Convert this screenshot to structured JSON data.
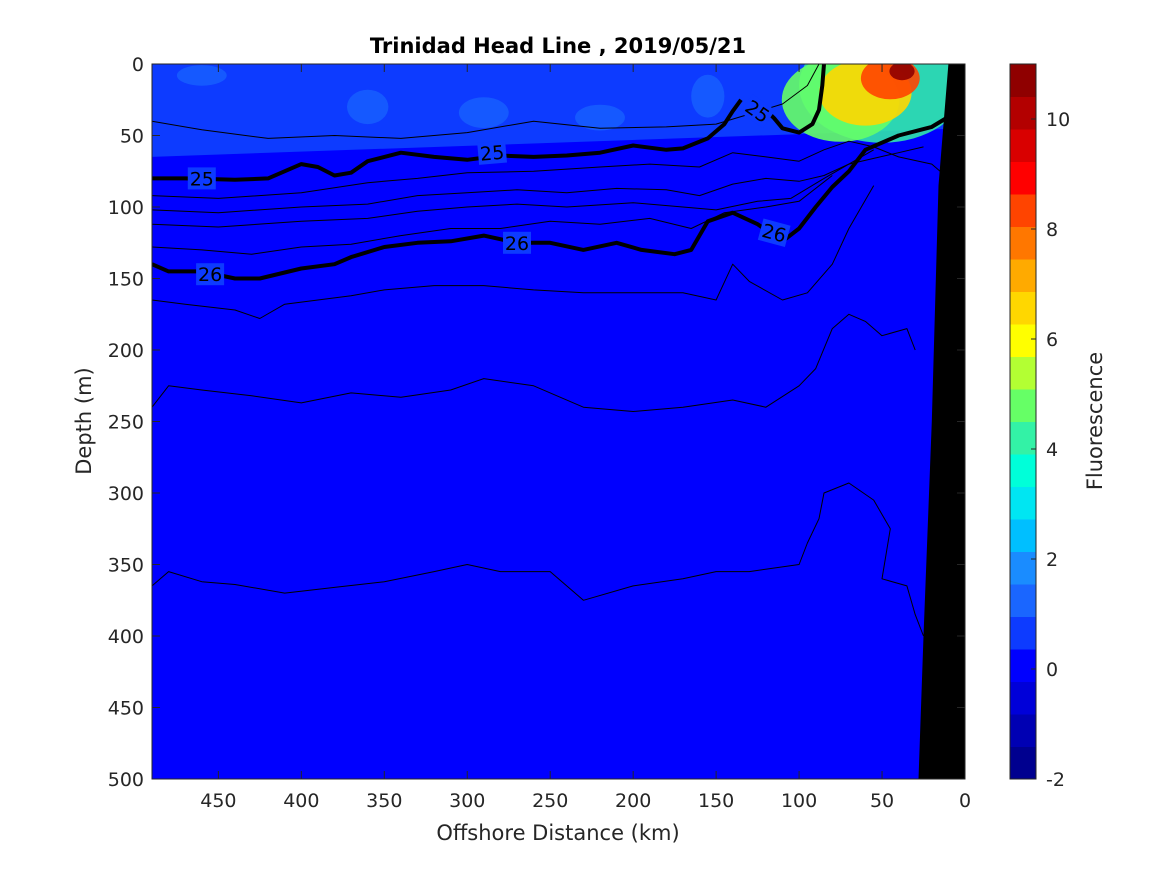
{
  "chart_data": {
    "type": "heatmap",
    "title": "Trinidad Head Line , 2019/05/21",
    "xlabel": "Offshore Distance (km)",
    "ylabel": "Depth (m)",
    "xlim": [
      490,
      0
    ],
    "ylim": [
      0,
      500
    ],
    "x_ticks": [
      450,
      400,
      350,
      300,
      250,
      200,
      150,
      100,
      50,
      0
    ],
    "y_ticks": [
      0,
      50,
      100,
      150,
      200,
      250,
      300,
      350,
      400,
      450,
      500
    ],
    "colorbar": {
      "label": "Fluorescence",
      "range": [
        -2,
        11
      ],
      "ticks": [
        -2,
        0,
        2,
        4,
        6,
        8,
        10
      ],
      "colors": [
        "#00008f",
        "#0000b3",
        "#0000d9",
        "#0000ff",
        "#0d3bff",
        "#1a66ff",
        "#1a8cff",
        "#00bfff",
        "#00e6f2",
        "#00ffd9",
        "#33f2a6",
        "#66ff66",
        "#b3ff33",
        "#ffff00",
        "#ffd700",
        "#ffaa00",
        "#ff7700",
        "#ff4400",
        "#ff0000",
        "#d90000",
        "#b30000",
        "#8f0000"
      ]
    },
    "fluorescence_field": {
      "background_value": 0.2,
      "surface_layer_value": 0.8,
      "surface_layer_depth_offshore": 65,
      "surface_layer_depth_nearshore": 45,
      "bloom": [
        {
          "distance": 38,
          "depth": 5,
          "value": 10.5
        },
        {
          "distance": 45,
          "depth": 10,
          "value": 8.5
        },
        {
          "distance": 60,
          "depth": 20,
          "value": 6.5
        },
        {
          "distance": 75,
          "depth": 25,
          "value": 5.0
        }
      ]
    },
    "isopycnals": [
      {
        "sigma": 25,
        "labeled": true,
        "distance": [
          490,
          470,
          440,
          420,
          400,
          390,
          380,
          370,
          360,
          340,
          320,
          300,
          280,
          260,
          240,
          220,
          200,
          180,
          170,
          155,
          145,
          140,
          135
        ],
        "depth": [
          80,
          80,
          81,
          80,
          70,
          72,
          78,
          76,
          68,
          62,
          65,
          67,
          64,
          65,
          64,
          62,
          57,
          60,
          59,
          52,
          42,
          33,
          25
        ]
      },
      {
        "sigma": 25,
        "labeled": true,
        "distance": [
          122,
          115,
          110,
          100,
          92,
          88,
          86,
          85
        ],
        "depth": [
          30,
          38,
          45,
          48,
          42,
          32,
          15,
          0
        ]
      },
      {
        "sigma": 26,
        "labeled": true,
        "distance": [
          490,
          480,
          460,
          440,
          425,
          400,
          380,
          370,
          350,
          330,
          310,
          290,
          270,
          250,
          230,
          210,
          195,
          175,
          165,
          155,
          140,
          125,
          110,
          100,
          90,
          80,
          70,
          60,
          40,
          20,
          10
        ],
        "depth": [
          140,
          145,
          145,
          150,
          150,
          143,
          140,
          135,
          128,
          125,
          124,
          120,
          125,
          125,
          130,
          125,
          130,
          133,
          130,
          110,
          104,
          112,
          124,
          115,
          100,
          86,
          75,
          60,
          50,
          44,
          37
        ]
      },
      {
        "sigma": null,
        "labeled": false,
        "distance": [
          490,
          460,
          420,
          380,
          340,
          300,
          260,
          220,
          180,
          150,
          130,
          110,
          95,
          88
        ],
        "depth": [
          40,
          46,
          52,
          50,
          52,
          48,
          40,
          45,
          44,
          42,
          35,
          28,
          15,
          0
        ]
      },
      {
        "sigma": null,
        "labeled": false,
        "distance": [
          490,
          450,
          400,
          360,
          330,
          300,
          260,
          220,
          190,
          160,
          140,
          120,
          100,
          85,
          70,
          55,
          40,
          20,
          10
        ],
        "depth": [
          92,
          94,
          90,
          83,
          80,
          76,
          75,
          72,
          70,
          72,
          62,
          65,
          68,
          60,
          54,
          58,
          65,
          70,
          80
        ]
      },
      {
        "sigma": null,
        "labeled": false,
        "distance": [
          490,
          450,
          400,
          360,
          330,
          300,
          270,
          240,
          210,
          180,
          160,
          140,
          120,
          100,
          85,
          70,
          55,
          40,
          25
        ],
        "depth": [
          102,
          104,
          100,
          98,
          92,
          90,
          88,
          90,
          87,
          88,
          92,
          84,
          80,
          82,
          78,
          70,
          66,
          62,
          58
        ]
      },
      {
        "sigma": null,
        "labeled": false,
        "distance": [
          490,
          450,
          400,
          360,
          330,
          300,
          270,
          240,
          200,
          170,
          150,
          125,
          105,
          85,
          70,
          55
        ],
        "depth": [
          112,
          114,
          110,
          108,
          103,
          100,
          98,
          100,
          97,
          100,
          102,
          96,
          94,
          80,
          70,
          60
        ]
      },
      {
        "sigma": null,
        "labeled": false,
        "distance": [
          490,
          460,
          430,
          400,
          370,
          340,
          310,
          280,
          250,
          220,
          190,
          165,
          145,
          120,
          100,
          80
        ],
        "depth": [
          128,
          130,
          133,
          128,
          126,
          120,
          115,
          115,
          110,
          112,
          108,
          115,
          104,
          100,
          96,
          78
        ]
      },
      {
        "sigma": null,
        "labeled": false,
        "distance": [
          490,
          470,
          440,
          425,
          410,
          390,
          370,
          350,
          320,
          290,
          260,
          230,
          200,
          170,
          150,
          140,
          130,
          110,
          95,
          80,
          70,
          55
        ],
        "depth": [
          165,
          168,
          172,
          178,
          168,
          165,
          162,
          158,
          155,
          155,
          158,
          160,
          160,
          160,
          165,
          140,
          152,
          165,
          160,
          140,
          115,
          85
        ]
      },
      {
        "sigma": null,
        "labeled": false,
        "distance": [
          490,
          480,
          460,
          430,
          400,
          370,
          340,
          310,
          290,
          260,
          230,
          200,
          170,
          140,
          120,
          100,
          90,
          80,
          70,
          60,
          50,
          35,
          30
        ],
        "depth": [
          240,
          225,
          228,
          232,
          237,
          230,
          233,
          228,
          220,
          225,
          240,
          243,
          240,
          235,
          240,
          225,
          213,
          185,
          175,
          180,
          190,
          185,
          200
        ]
      },
      {
        "sigma": null,
        "labeled": false,
        "distance": [
          490,
          480,
          460,
          440,
          410,
          380,
          350,
          320,
          300,
          280,
          250,
          230,
          200,
          170,
          150,
          130,
          100,
          95,
          88,
          85,
          70,
          55,
          45,
          50,
          35,
          30,
          25
        ],
        "depth": [
          365,
          355,
          362,
          364,
          370,
          366,
          362,
          355,
          350,
          355,
          355,
          375,
          365,
          360,
          355,
          355,
          350,
          335,
          318,
          300,
          293,
          305,
          325,
          360,
          365,
          385,
          400
        ]
      }
    ],
    "bathymetry": {
      "distance": [
        -5,
        10,
        16,
        20,
        25,
        28,
        -5
      ],
      "depth": [
        0,
        0,
        85,
        250,
        400,
        500,
        500
      ]
    }
  }
}
